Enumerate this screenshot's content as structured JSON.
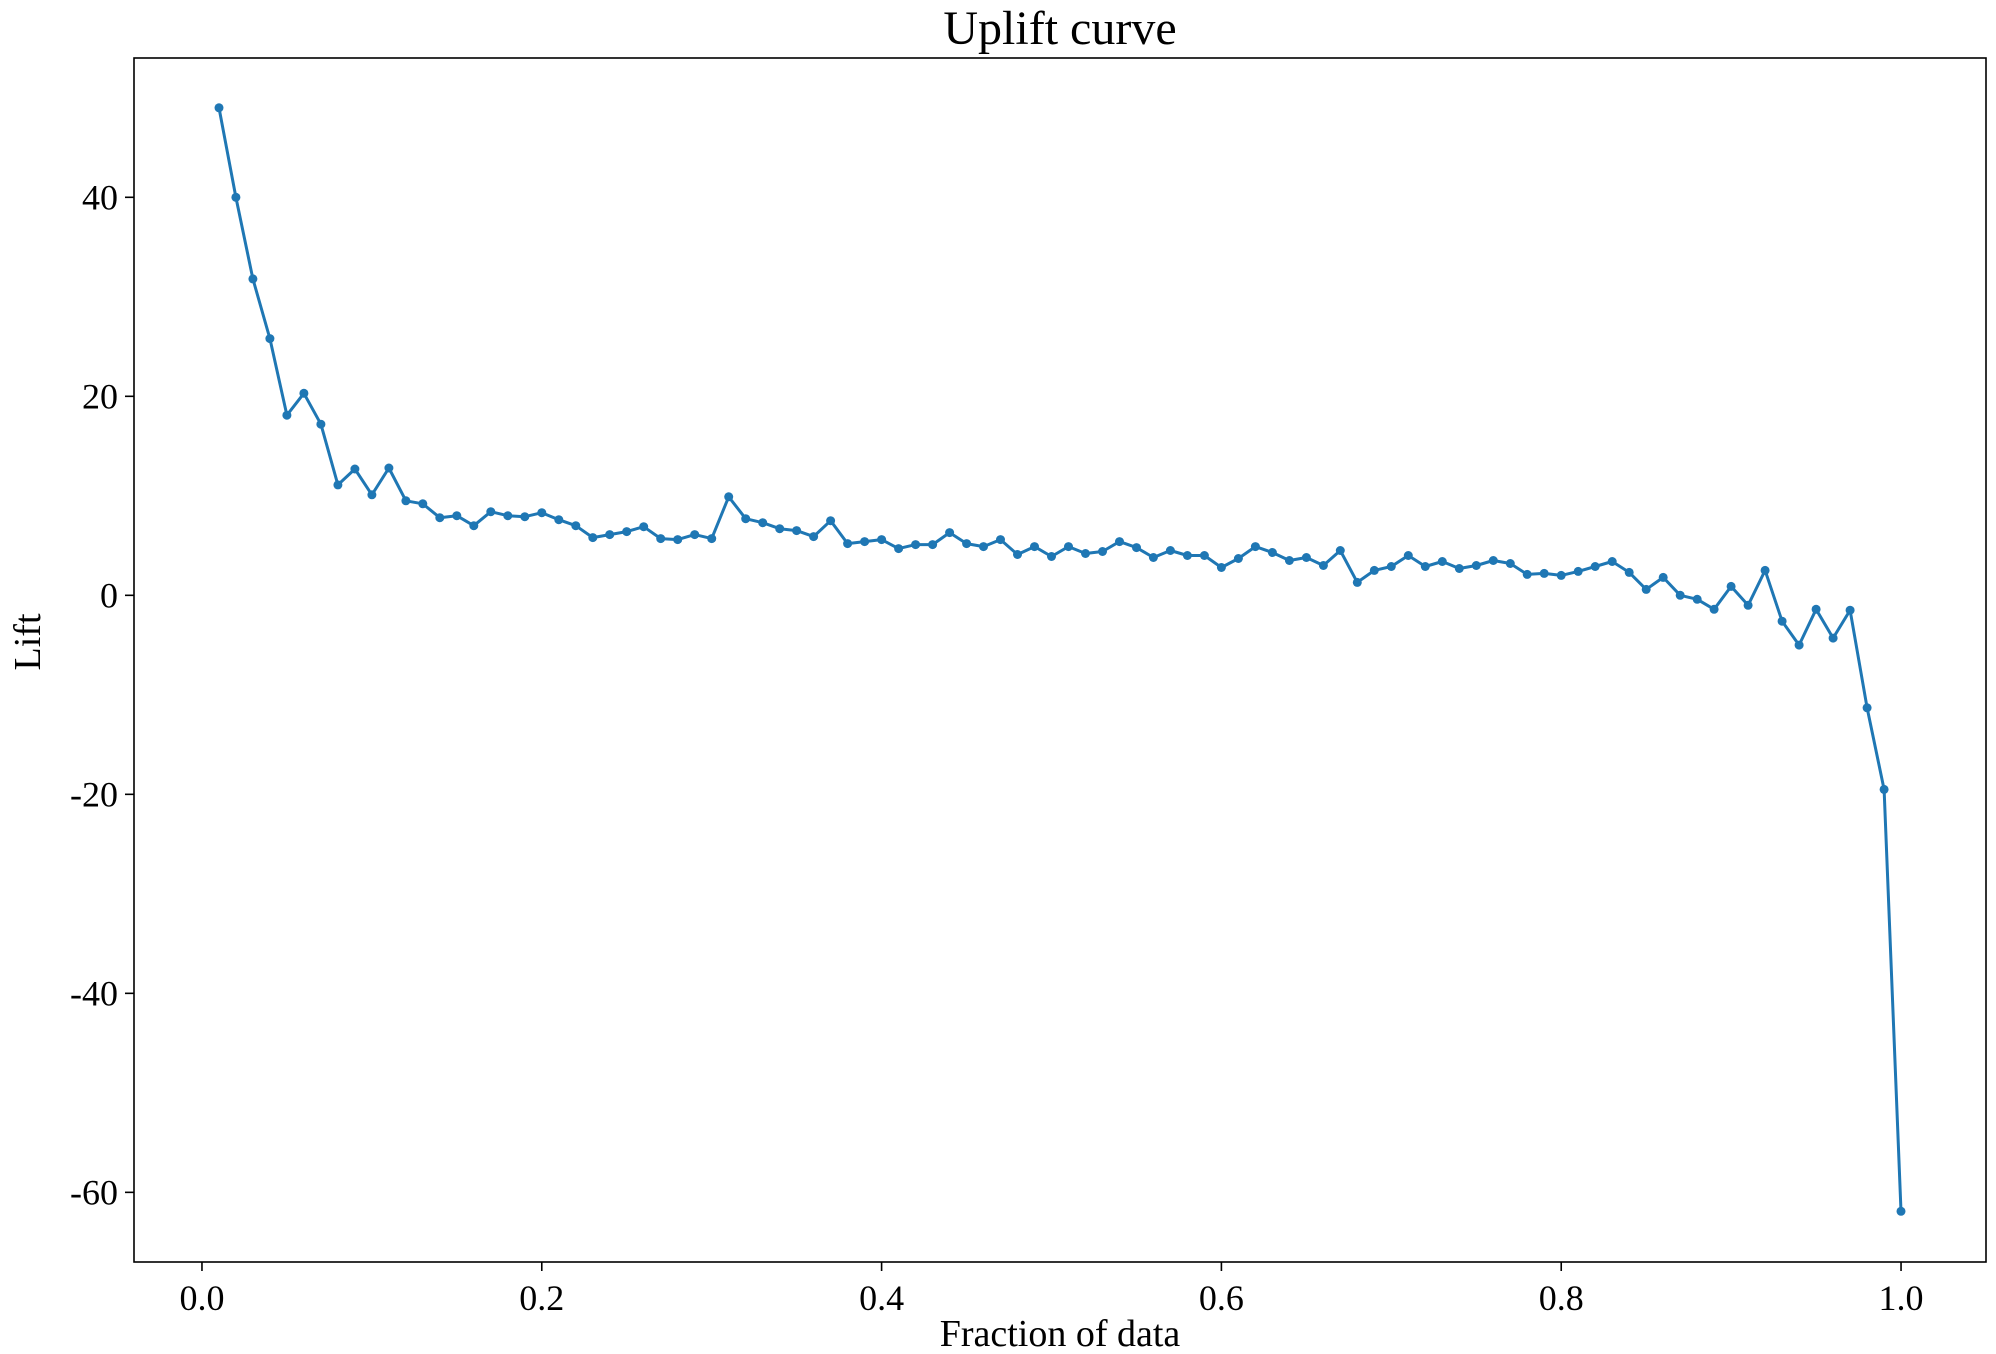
{
  "chart_data": {
    "type": "line",
    "title": "Uplift curve",
    "xlabel": "Fraction of data",
    "ylabel": "Lift",
    "xlim": [
      -0.04,
      1.05
    ],
    "ylim": [
      -67,
      54
    ],
    "xticks": [
      0.0,
      0.2,
      0.4,
      0.6,
      0.8,
      1.0
    ],
    "xtick_labels": [
      "0.0",
      "0.2",
      "0.4",
      "0.6",
      "0.8",
      "1.0"
    ],
    "yticks": [
      40,
      20,
      0,
      -20,
      -40,
      -60
    ],
    "ytick_labels": [
      "40",
      "20",
      "0",
      "-20",
      "-40",
      "-60"
    ],
    "grid": false,
    "legend": "none",
    "series": [
      {
        "color": "#1f77b4",
        "marker": "circle",
        "x": [
          0.01,
          0.02,
          0.03,
          0.04,
          0.05,
          0.06,
          0.07,
          0.08,
          0.09,
          0.1,
          0.11,
          0.12,
          0.13,
          0.14,
          0.15,
          0.16,
          0.17,
          0.18,
          0.19,
          0.2,
          0.21,
          0.22,
          0.23,
          0.24,
          0.25,
          0.26,
          0.27,
          0.28,
          0.29,
          0.3,
          0.31,
          0.32,
          0.33,
          0.34,
          0.35,
          0.36,
          0.37,
          0.38,
          0.39,
          0.4,
          0.41,
          0.42,
          0.43,
          0.44,
          0.45,
          0.46,
          0.47,
          0.48,
          0.49,
          0.5,
          0.51,
          0.52,
          0.53,
          0.54,
          0.55,
          0.56,
          0.57,
          0.58,
          0.59,
          0.6,
          0.61,
          0.62,
          0.63,
          0.64,
          0.65,
          0.66,
          0.67,
          0.68,
          0.69,
          0.7,
          0.71,
          0.72,
          0.73,
          0.74,
          0.75,
          0.76,
          0.77,
          0.78,
          0.79,
          0.8,
          0.81,
          0.82,
          0.83,
          0.84,
          0.85,
          0.86,
          0.87,
          0.88,
          0.89,
          0.9,
          0.91,
          0.92,
          0.93,
          0.94,
          0.95,
          0.96,
          0.97,
          0.98,
          0.99,
          1.0
        ],
        "y": [
          49.0,
          40.0,
          31.8,
          25.8,
          18.1,
          20.3,
          17.2,
          11.1,
          12.7,
          10.1,
          12.8,
          9.5,
          9.2,
          7.8,
          8.0,
          7.0,
          8.4,
          8.0,
          7.9,
          8.3,
          7.6,
          7.0,
          5.8,
          6.1,
          6.4,
          6.9,
          5.7,
          5.6,
          6.1,
          5.7,
          9.9,
          7.7,
          7.3,
          6.7,
          6.5,
          5.9,
          7.5,
          5.2,
          5.4,
          5.6,
          4.7,
          5.1,
          5.1,
          6.3,
          5.2,
          4.9,
          5.6,
          4.1,
          4.9,
          3.9,
          4.9,
          4.2,
          4.4,
          5.4,
          4.8,
          3.8,
          4.5,
          4.0,
          4.0,
          2.8,
          3.7,
          4.9,
          4.3,
          3.5,
          3.8,
          3.0,
          4.5,
          1.3,
          2.5,
          2.9,
          4.0,
          2.9,
          3.4,
          2.7,
          3.0,
          3.5,
          3.2,
          2.1,
          2.2,
          2.0,
          2.4,
          2.9,
          3.4,
          2.3,
          0.6,
          1.8,
          0.0,
          -0.4,
          -1.4,
          0.9,
          -1.0,
          2.5,
          -2.6,
          -5.0,
          -1.4,
          -4.3,
          -1.5,
          -11.3,
          -19.5,
          -61.9
        ]
      }
    ]
  }
}
